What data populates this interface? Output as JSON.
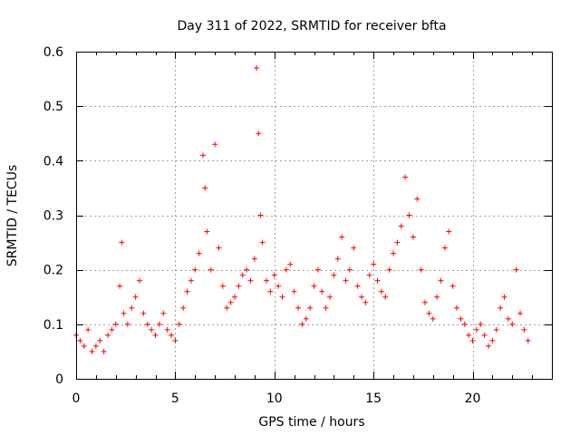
{
  "chart_data": {
    "type": "scatter",
    "title": "Day 311 of 2022, SRMTID for receiver bfta",
    "xlabel": "GPS time / hours",
    "ylabel": "SRMTID / TECUs",
    "xlim": [
      0,
      24
    ],
    "ylim": [
      0,
      0.6
    ],
    "xticks": [
      0,
      5,
      10,
      15,
      20
    ],
    "xtick_labels": [
      "0",
      "5",
      "10",
      "15",
      "20"
    ],
    "yticks": [
      0,
      0.1,
      0.2,
      0.3,
      0.4,
      0.5,
      0.6
    ],
    "ytick_labels": [
      "0",
      "0.1",
      "0.2",
      "0.3",
      "0.4",
      "0.5",
      "0.6"
    ],
    "grid": true,
    "marker": "+",
    "series": [
      {
        "name": "SRMTID",
        "color": "#ff0000",
        "x": [
          0.0,
          0.2,
          0.4,
          0.6,
          0.8,
          1.0,
          1.2,
          1.4,
          1.6,
          1.8,
          2.0,
          2.2,
          2.3,
          2.4,
          2.6,
          2.8,
          3.0,
          3.2,
          3.4,
          3.6,
          3.8,
          4.0,
          4.2,
          4.4,
          4.6,
          4.8,
          5.0,
          5.2,
          5.4,
          5.6,
          5.8,
          6.0,
          6.2,
          6.4,
          6.5,
          6.6,
          6.8,
          7.0,
          7.2,
          7.4,
          7.6,
          7.8,
          8.0,
          8.2,
          8.4,
          8.6,
          8.8,
          9.0,
          9.1,
          9.2,
          9.3,
          9.4,
          9.6,
          9.8,
          10.0,
          10.2,
          10.4,
          10.6,
          10.8,
          11.0,
          11.2,
          11.4,
          11.6,
          11.8,
          12.0,
          12.2,
          12.4,
          12.6,
          12.8,
          13.0,
          13.2,
          13.4,
          13.6,
          13.8,
          14.0,
          14.2,
          14.4,
          14.6,
          14.8,
          15.0,
          15.2,
          15.4,
          15.6,
          15.8,
          16.0,
          16.2,
          16.4,
          16.6,
          16.8,
          17.0,
          17.2,
          17.4,
          17.6,
          17.8,
          18.0,
          18.2,
          18.4,
          18.6,
          18.8,
          19.0,
          19.2,
          19.4,
          19.6,
          19.8,
          20.0,
          20.2,
          20.4,
          20.6,
          20.8,
          21.0,
          21.2,
          21.4,
          21.6,
          21.8,
          22.0,
          22.2,
          22.4,
          22.6,
          22.8
        ],
        "y": [
          0.08,
          0.07,
          0.06,
          0.09,
          0.05,
          0.06,
          0.07,
          0.05,
          0.08,
          0.09,
          0.1,
          0.17,
          0.25,
          0.12,
          0.1,
          0.13,
          0.15,
          0.18,
          0.12,
          0.1,
          0.09,
          0.08,
          0.1,
          0.12,
          0.09,
          0.08,
          0.07,
          0.1,
          0.13,
          0.16,
          0.18,
          0.2,
          0.23,
          0.41,
          0.35,
          0.27,
          0.2,
          0.43,
          0.24,
          0.17,
          0.13,
          0.14,
          0.15,
          0.17,
          0.19,
          0.2,
          0.18,
          0.22,
          0.57,
          0.45,
          0.3,
          0.25,
          0.18,
          0.16,
          0.19,
          0.17,
          0.15,
          0.2,
          0.21,
          0.16,
          0.13,
          0.1,
          0.11,
          0.13,
          0.17,
          0.2,
          0.16,
          0.13,
          0.15,
          0.19,
          0.22,
          0.26,
          0.18,
          0.2,
          0.24,
          0.17,
          0.15,
          0.14,
          0.19,
          0.21,
          0.18,
          0.16,
          0.15,
          0.2,
          0.23,
          0.25,
          0.28,
          0.37,
          0.3,
          0.26,
          0.33,
          0.2,
          0.14,
          0.12,
          0.11,
          0.15,
          0.18,
          0.24,
          0.27,
          0.17,
          0.13,
          0.11,
          0.1,
          0.08,
          0.07,
          0.09,
          0.1,
          0.08,
          0.06,
          0.07,
          0.09,
          0.13,
          0.15,
          0.11,
          0.1,
          0.2,
          0.12,
          0.09,
          0.07
        ]
      }
    ]
  }
}
